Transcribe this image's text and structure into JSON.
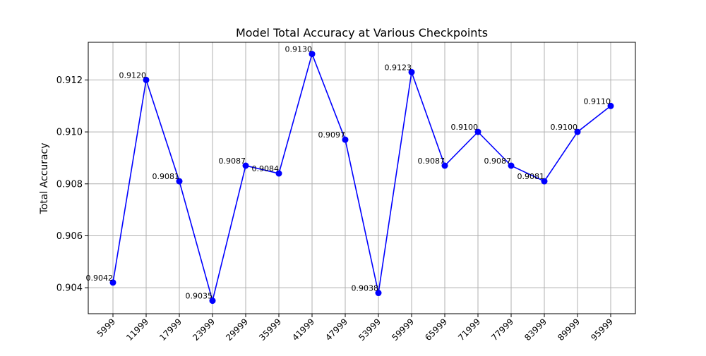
{
  "chart_data": {
    "type": "line",
    "title": "Model Total Accuracy at Various Checkpoints",
    "xlabel": "",
    "ylabel": "Total Accuracy",
    "categories": [
      "5999",
      "11999",
      "17999",
      "23999",
      "29999",
      "35999",
      "41999",
      "47999",
      "53999",
      "59999",
      "65999",
      "71999",
      "77999",
      "83999",
      "89999",
      "95999"
    ],
    "series": [
      {
        "values": [
          0.9042,
          0.912,
          0.9081,
          0.9035,
          0.9087,
          0.9084,
          0.913,
          0.9097,
          0.9038,
          0.9123,
          0.9087,
          0.91,
          0.9087,
          0.9081,
          0.91,
          0.911
        ],
        "data_labels": [
          "0.9042",
          "0.9120",
          "0.9081",
          "0.9035",
          "0.9087",
          "0.9084",
          "0.9130",
          "0.9097",
          "0.9038",
          "0.9123",
          "0.9087",
          "0.9100",
          "0.9087",
          "0.9081",
          "0.9100",
          "0.9110"
        ],
        "color": "#0000ff"
      }
    ],
    "ylim": [
      0.903,
      0.91345
    ],
    "yticks": [
      "0.904",
      "0.906",
      "0.908",
      "0.910",
      "0.912"
    ],
    "grid": true,
    "legend": "none"
  }
}
